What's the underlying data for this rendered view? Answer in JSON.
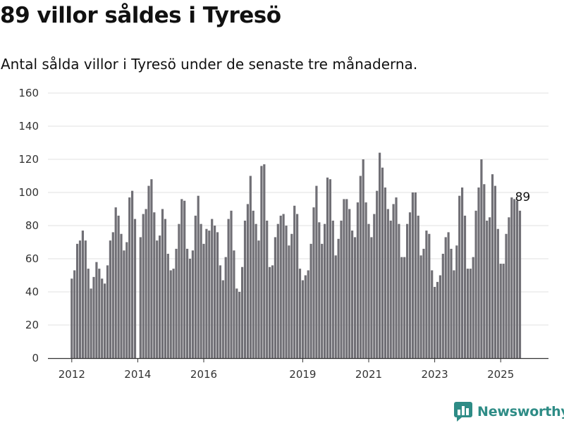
{
  "title": "89 villor såldes i Tyresö",
  "subtitle": "Antal sålda villor i Tyresö under de senaste tre månaderna.",
  "brand": {
    "name": "Newsworthy",
    "color": "#2e8c86",
    "icon": "bar-chart-icon"
  },
  "chart_data": {
    "type": "bar",
    "title": "89 villor såldes i Tyresö",
    "subtitle": "Antal sålda villor i Tyresö under de senaste tre månaderna.",
    "xlabel": "",
    "ylabel": "",
    "ylim": [
      0,
      160
    ],
    "yticks": [
      "0",
      "20",
      "40",
      "60",
      "80",
      "100",
      "120",
      "140",
      "160"
    ],
    "grid": true,
    "legend": "none",
    "x_start": "2012-01",
    "x_tick_labels": [
      "2012",
      "2014",
      "2016",
      "2019",
      "2021",
      "2023",
      "2025"
    ],
    "colors": {
      "bar": "#706f75",
      "highlight": "#1f9c8a",
      "grid": "#e2e2e2",
      "axis": "#333333"
    },
    "values": [
      48,
      53,
      69,
      71,
      77,
      71,
      54,
      42,
      49,
      58,
      54,
      48,
      45,
      56,
      71,
      76,
      91,
      86,
      75,
      65,
      70,
      97,
      101,
      84,
      0,
      73,
      87,
      90,
      104,
      108,
      88,
      71,
      74,
      90,
      84,
      63,
      53,
      54,
      66,
      81,
      96,
      95,
      66,
      60,
      65,
      86,
      98,
      81,
      69,
      78,
      77,
      84,
      80,
      76,
      56,
      47,
      61,
      84,
      89,
      65,
      42,
      40,
      55,
      83,
      93,
      110,
      89,
      81,
      71,
      116,
      117,
      83,
      55,
      56,
      73,
      81,
      86,
      87,
      80,
      68,
      75,
      92,
      87,
      54,
      47,
      50,
      53,
      69,
      91,
      104,
      82,
      69,
      81,
      109,
      108,
      83,
      62,
      72,
      83,
      96,
      96,
      90,
      77,
      73,
      94,
      110,
      120,
      94,
      81,
      73,
      87,
      101,
      124,
      115,
      103,
      90,
      83,
      93,
      97,
      81,
      61,
      61,
      81,
      88,
      100,
      100,
      86,
      62,
      66,
      77,
      75,
      53,
      43,
      46,
      50,
      63,
      73,
      76,
      66,
      53,
      68,
      98,
      103,
      86,
      54,
      54,
      61,
      89,
      103,
      120,
      105,
      83,
      85,
      111,
      104,
      78,
      57,
      57,
      75,
      85,
      97,
      96,
      95,
      89
    ],
    "highlight": {
      "index": 164,
      "label": "89",
      "value": 89
    }
  }
}
